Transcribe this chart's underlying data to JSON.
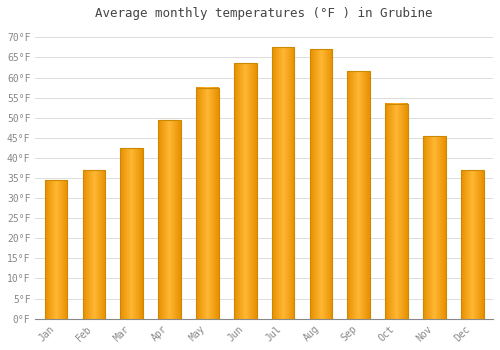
{
  "title": "Average monthly temperatures (°F ) in Grubine",
  "months": [
    "Jan",
    "Feb",
    "Mar",
    "Apr",
    "May",
    "Jun",
    "Jul",
    "Aug",
    "Sep",
    "Oct",
    "Nov",
    "Dec"
  ],
  "values": [
    34.5,
    37.0,
    42.5,
    49.5,
    57.5,
    63.5,
    67.5,
    67.0,
    61.5,
    53.5,
    45.5,
    37.0
  ],
  "bar_color_light": "#FFB733",
  "bar_color_dark": "#E89000",
  "bar_edge_color": "#CC8800",
  "background_color": "#FFFFFF",
  "grid_color": "#DDDDDD",
  "ytick_labels": [
    "0°F",
    "5°F",
    "10°F",
    "15°F",
    "20°F",
    "25°F",
    "30°F",
    "35°F",
    "40°F",
    "45°F",
    "50°F",
    "55°F",
    "60°F",
    "65°F",
    "70°F"
  ],
  "ytick_values": [
    0,
    5,
    10,
    15,
    20,
    25,
    30,
    35,
    40,
    45,
    50,
    55,
    60,
    65,
    70
  ],
  "ylim": [
    0,
    73
  ],
  "title_fontsize": 9,
  "tick_fontsize": 7,
  "title_color": "#444444",
  "tick_color": "#888888",
  "font_family": "monospace"
}
